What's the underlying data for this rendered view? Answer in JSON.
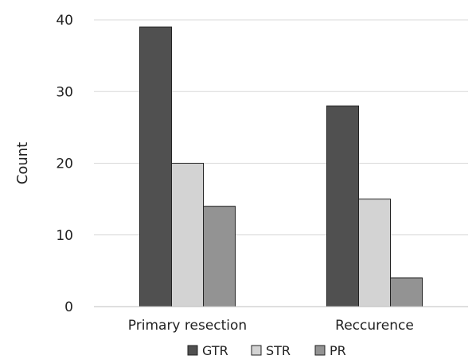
{
  "chart_data": {
    "type": "bar",
    "categories": [
      "Primary resection",
      "Reccurence"
    ],
    "series": [
      {
        "name": "GTR",
        "values": [
          39,
          28
        ],
        "color": "#505050"
      },
      {
        "name": "STR",
        "values": [
          20,
          15
        ],
        "color": "#d3d3d3"
      },
      {
        "name": "PR",
        "values": [
          14,
          4
        ],
        "color": "#939393"
      }
    ],
    "title": "",
    "xlabel": "",
    "ylabel": "Count",
    "ylim": [
      0,
      40
    ],
    "yticks": [
      0,
      10,
      20,
      30,
      40
    ],
    "grid": true,
    "legend_position": "bottom"
  }
}
